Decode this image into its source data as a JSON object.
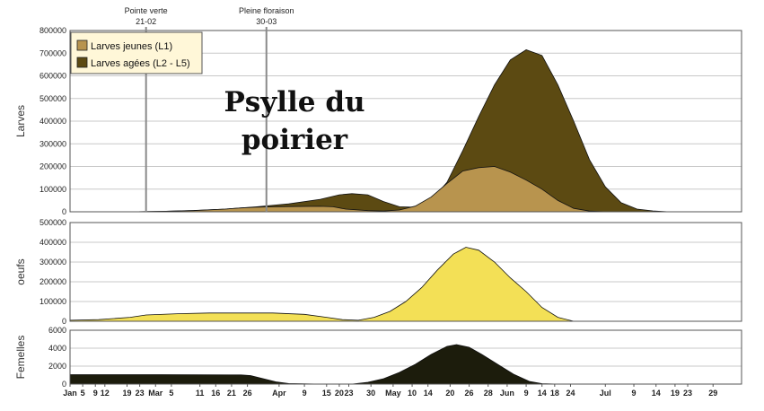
{
  "chart_data": {
    "type": "area",
    "title_lines": [
      "Psylle du",
      "poirier"
    ],
    "colors": {
      "larves_jeunes": "#b8944e",
      "larves_agees": "#5c4a12",
      "oeufs": "#f3e056",
      "femelles": "#1c1c0c",
      "marker_line": "#8a8a8a",
      "grid": "#c8c8c8"
    },
    "x_axis": {
      "unit": "day of year",
      "range": [
        1,
        213
      ],
      "ticks": [
        {
          "x": 1,
          "label": "Jan"
        },
        {
          "x": 5,
          "label": "5"
        },
        {
          "x": 9,
          "label": "9"
        },
        {
          "x": 12,
          "label": "12"
        },
        {
          "x": 19,
          "label": "19"
        },
        {
          "x": 23,
          "label": "23"
        },
        {
          "x": 28,
          "label": "Mar"
        },
        {
          "x": 33,
          "label": "5"
        },
        {
          "x": 42,
          "label": "11"
        },
        {
          "x": 47,
          "label": "16"
        },
        {
          "x": 52,
          "label": "21"
        },
        {
          "x": 57,
          "label": "26"
        },
        {
          "x": 67,
          "label": "Apr"
        },
        {
          "x": 75,
          "label": "9"
        },
        {
          "x": 82,
          "label": "15"
        },
        {
          "x": 86,
          "label": "20"
        },
        {
          "x": 89,
          "label": "23"
        },
        {
          "x": 96,
          "label": "30"
        },
        {
          "x": 103,
          "label": "May"
        },
        {
          "x": 109,
          "label": "10"
        },
        {
          "x": 114,
          "label": "14"
        },
        {
          "x": 121,
          "label": "20"
        },
        {
          "x": 127,
          "label": "26"
        },
        {
          "x": 133,
          "label": "28"
        },
        {
          "x": 139,
          "label": "Jun"
        },
        {
          "x": 145,
          "label": "9"
        },
        {
          "x": 150,
          "label": "14"
        },
        {
          "x": 154,
          "label": "18"
        },
        {
          "x": 159,
          "label": "24"
        },
        {
          "x": 170,
          "label": "Jul"
        },
        {
          "x": 179,
          "label": "9"
        },
        {
          "x": 186,
          "label": "14"
        },
        {
          "x": 192,
          "label": "19"
        },
        {
          "x": 196,
          "label": "23"
        },
        {
          "x": 204,
          "label": "29"
        }
      ]
    },
    "markers": [
      {
        "x": 25,
        "label": "Pointe verte",
        "date": "21-02"
      },
      {
        "x": 63,
        "label": "Pleine floraison",
        "date": "30-03"
      }
    ],
    "panels": [
      {
        "id": "larves",
        "ylabel": "Larves",
        "ylim": [
          0,
          800000
        ],
        "yticks": [
          0,
          100000,
          200000,
          300000,
          400000,
          500000,
          600000,
          700000,
          800000
        ],
        "legend": {
          "placement": "top-left",
          "entries": [
            "Larves jeunes (L1)",
            "Larves agées (L2 - L5)"
          ]
        },
        "series": [
          {
            "name": "Larves agées (L2 - L5)",
            "color_key": "larves_agees",
            "points": [
              [
                1,
                0
              ],
              [
                20,
                0
              ],
              [
                30,
                2000
              ],
              [
                40,
                6000
              ],
              [
                50,
                12000
              ],
              [
                60,
                22000
              ],
              [
                70,
                35000
              ],
              [
                80,
                55000
              ],
              [
                86,
                75000
              ],
              [
                90,
                80000
              ],
              [
                95,
                75000
              ],
              [
                100,
                45000
              ],
              [
                105,
                22000
              ],
              [
                110,
                20000
              ],
              [
                115,
                50000
              ],
              [
                120,
                130000
              ],
              [
                125,
                270000
              ],
              [
                130,
                420000
              ],
              [
                135,
                560000
              ],
              [
                140,
                670000
              ],
              [
                145,
                715000
              ],
              [
                150,
                690000
              ],
              [
                155,
                560000
              ],
              [
                160,
                400000
              ],
              [
                165,
                230000
              ],
              [
                170,
                110000
              ],
              [
                175,
                40000
              ],
              [
                180,
                12000
              ],
              [
                185,
                4000
              ],
              [
                190,
                0
              ],
              [
                213,
                0
              ]
            ]
          },
          {
            "name": "Larves jeunes (L1)",
            "color_key": "larves_jeunes",
            "points": [
              [
                1,
                0
              ],
              [
                20,
                0
              ],
              [
                30,
                2000
              ],
              [
                40,
                5000
              ],
              [
                50,
                12000
              ],
              [
                55,
                17000
              ],
              [
                60,
                20000
              ],
              [
                70,
                23000
              ],
              [
                80,
                24000
              ],
              [
                84,
                22000
              ],
              [
                88,
                12000
              ],
              [
                95,
                5000
              ],
              [
                100,
                3000
              ],
              [
                105,
                8000
              ],
              [
                110,
                25000
              ],
              [
                115,
                65000
              ],
              [
                120,
                125000
              ],
              [
                125,
                180000
              ],
              [
                130,
                195000
              ],
              [
                135,
                200000
              ],
              [
                140,
                175000
              ],
              [
                145,
                140000
              ],
              [
                150,
                100000
              ],
              [
                155,
                50000
              ],
              [
                160,
                15000
              ],
              [
                165,
                3000
              ],
              [
                170,
                0
              ],
              [
                213,
                0
              ]
            ]
          }
        ]
      },
      {
        "id": "oeufs",
        "ylabel": "oeufs",
        "ylim": [
          0,
          500000
        ],
        "yticks": [
          0,
          100000,
          200000,
          300000,
          400000,
          500000
        ],
        "series": [
          {
            "name": "",
            "color_key": "oeufs",
            "points": [
              [
                1,
                5000
              ],
              [
                10,
                8000
              ],
              [
                20,
                20000
              ],
              [
                25,
                32000
              ],
              [
                35,
                38000
              ],
              [
                45,
                42000
              ],
              [
                55,
                42000
              ],
              [
                65,
                42000
              ],
              [
                75,
                35000
              ],
              [
                82,
                20000
              ],
              [
                87,
                8000
              ],
              [
                92,
                5000
              ],
              [
                97,
                20000
              ],
              [
                102,
                50000
              ],
              [
                107,
                100000
              ],
              [
                112,
                170000
              ],
              [
                117,
                260000
              ],
              [
                122,
                340000
              ],
              [
                126,
                375000
              ],
              [
                130,
                360000
              ],
              [
                135,
                300000
              ],
              [
                140,
                220000
              ],
              [
                145,
                150000
              ],
              [
                150,
                70000
              ],
              [
                155,
                20000
              ],
              [
                160,
                0
              ],
              [
                213,
                0
              ]
            ]
          }
        ]
      },
      {
        "id": "femelles",
        "ylabel": "Femelles",
        "ylim": [
          0,
          6000
        ],
        "yticks": [
          0,
          2000,
          4000,
          6000
        ],
        "series": [
          {
            "name": "",
            "color_key": "femelles",
            "points": [
              [
                1,
                1050
              ],
              [
                30,
                1050
              ],
              [
                55,
                1020
              ],
              [
                58,
                950
              ],
              [
                62,
                600
              ],
              [
                66,
                250
              ],
              [
                70,
                60
              ],
              [
                80,
                0
              ],
              [
                90,
                0
              ],
              [
                95,
                200
              ],
              [
                100,
                600
              ],
              [
                105,
                1300
              ],
              [
                110,
                2200
              ],
              [
                115,
                3300
              ],
              [
                120,
                4200
              ],
              [
                123,
                4400
              ],
              [
                127,
                4100
              ],
              [
                131,
                3300
              ],
              [
                136,
                2200
              ],
              [
                141,
                1100
              ],
              [
                146,
                300
              ],
              [
                150,
                50
              ],
              [
                155,
                0
              ],
              [
                213,
                0
              ]
            ]
          }
        ]
      }
    ]
  }
}
